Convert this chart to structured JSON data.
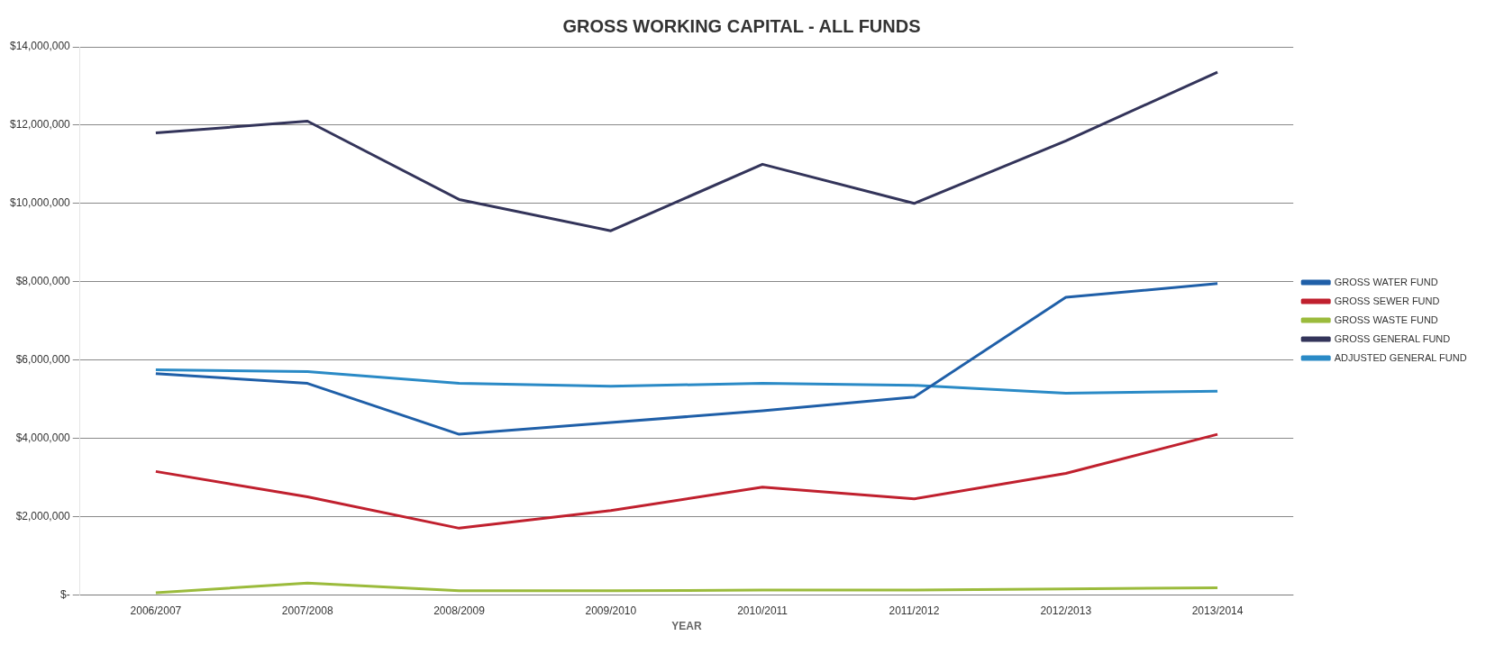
{
  "chart_data": {
    "type": "line",
    "title": "GROSS WORKING CAPITAL - ALL FUNDS",
    "xlabel": "YEAR",
    "categories": [
      "2006/2007",
      "2007/2008",
      "2008/2009",
      "2009/2010",
      "2010/2011",
      "2011/2012",
      "2012/2013",
      "2013/2014"
    ],
    "series": [
      {
        "name": "GROSS WATER FUND",
        "color": "#1f5fa8",
        "values": [
          5650000,
          5400000,
          4100000,
          4400000,
          4700000,
          5050000,
          7600000,
          7950000
        ]
      },
      {
        "name": "GROSS SEWER FUND",
        "color": "#c0202e",
        "values": [
          3150000,
          2500000,
          1700000,
          2150000,
          2750000,
          2450000,
          3100000,
          4100000
        ]
      },
      {
        "name": "GROSS WASTE FUND",
        "color": "#9bbb3c",
        "values": [
          50000,
          300000,
          100000,
          100000,
          120000,
          120000,
          150000,
          180000
        ]
      },
      {
        "name": "GROSS GENERAL FUND",
        "color": "#33345a",
        "values": [
          11800000,
          12100000,
          10100000,
          9300000,
          11000000,
          10000000,
          11600000,
          13350000
        ]
      },
      {
        "name": "ADJUSTED GENERAL FUND",
        "color": "#2a8ac6",
        "values": [
          5750000,
          5700000,
          5400000,
          5330000,
          5400000,
          5350000,
          5150000,
          5200000
        ]
      }
    ],
    "ylim": [
      0,
      14000000
    ],
    "yticks": [
      {
        "value": 0,
        "label": "$-"
      },
      {
        "value": 2000000,
        "label": "$2,000,000"
      },
      {
        "value": 4000000,
        "label": "$4,000,000"
      },
      {
        "value": 6000000,
        "label": "$6,000,000"
      },
      {
        "value": 8000000,
        "label": "$8,000,000"
      },
      {
        "value": 10000000,
        "label": "$10,000,000"
      },
      {
        "value": 12000000,
        "label": "$12,000,000"
      },
      {
        "value": 14000000,
        "label": "$14,000,000"
      }
    ],
    "grid": "y",
    "legend": "right",
    "marker": "none",
    "line_style": "solid"
  }
}
